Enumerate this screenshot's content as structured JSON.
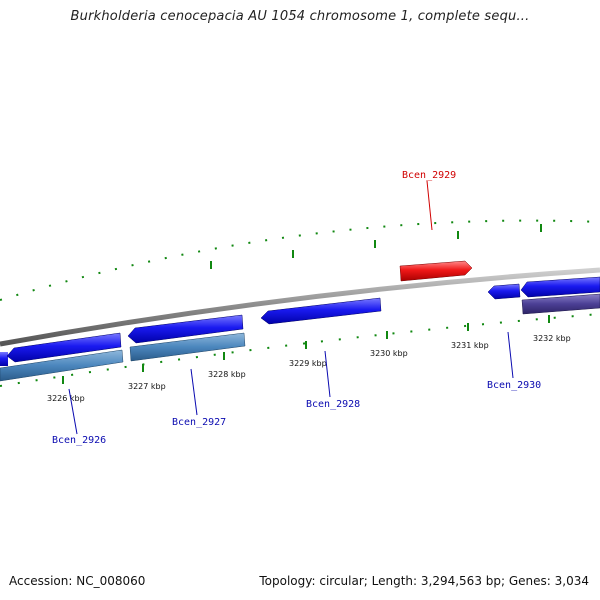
{
  "title": "Burkholderia cenocepacia AU 1054 chromosome 1, complete sequ...",
  "footer": {
    "accession": "Accession: NC_008060",
    "summary": "Topology: circular; Length: 3,294,563 bp; Genes: 3,034"
  },
  "colors": {
    "gene_forward": "#1010e8",
    "gene_selected": "#e81010",
    "gene_reverse": "#3e7bb5",
    "gene_reverse_dark": "#4a3e8a",
    "backbone": "#888888",
    "tick": "#118811",
    "label_default": "#0a0ab0",
    "label_selected": "#d00000"
  },
  "ticks": [
    {
      "label": "3226 kbp"
    },
    {
      "label": "3227 kbp"
    },
    {
      "label": "3228 kbp"
    },
    {
      "label": "3229 kbp"
    },
    {
      "label": "3230 kbp"
    },
    {
      "label": "3231 kbp"
    },
    {
      "label": "3232 kbp"
    }
  ],
  "genes": [
    {
      "name": "Bcen_2926"
    },
    {
      "name": "Bcen_2927"
    },
    {
      "name": "Bcen_2928"
    },
    {
      "name": "Bcen_2929",
      "selected": true
    },
    {
      "name": "Bcen_2930"
    }
  ]
}
